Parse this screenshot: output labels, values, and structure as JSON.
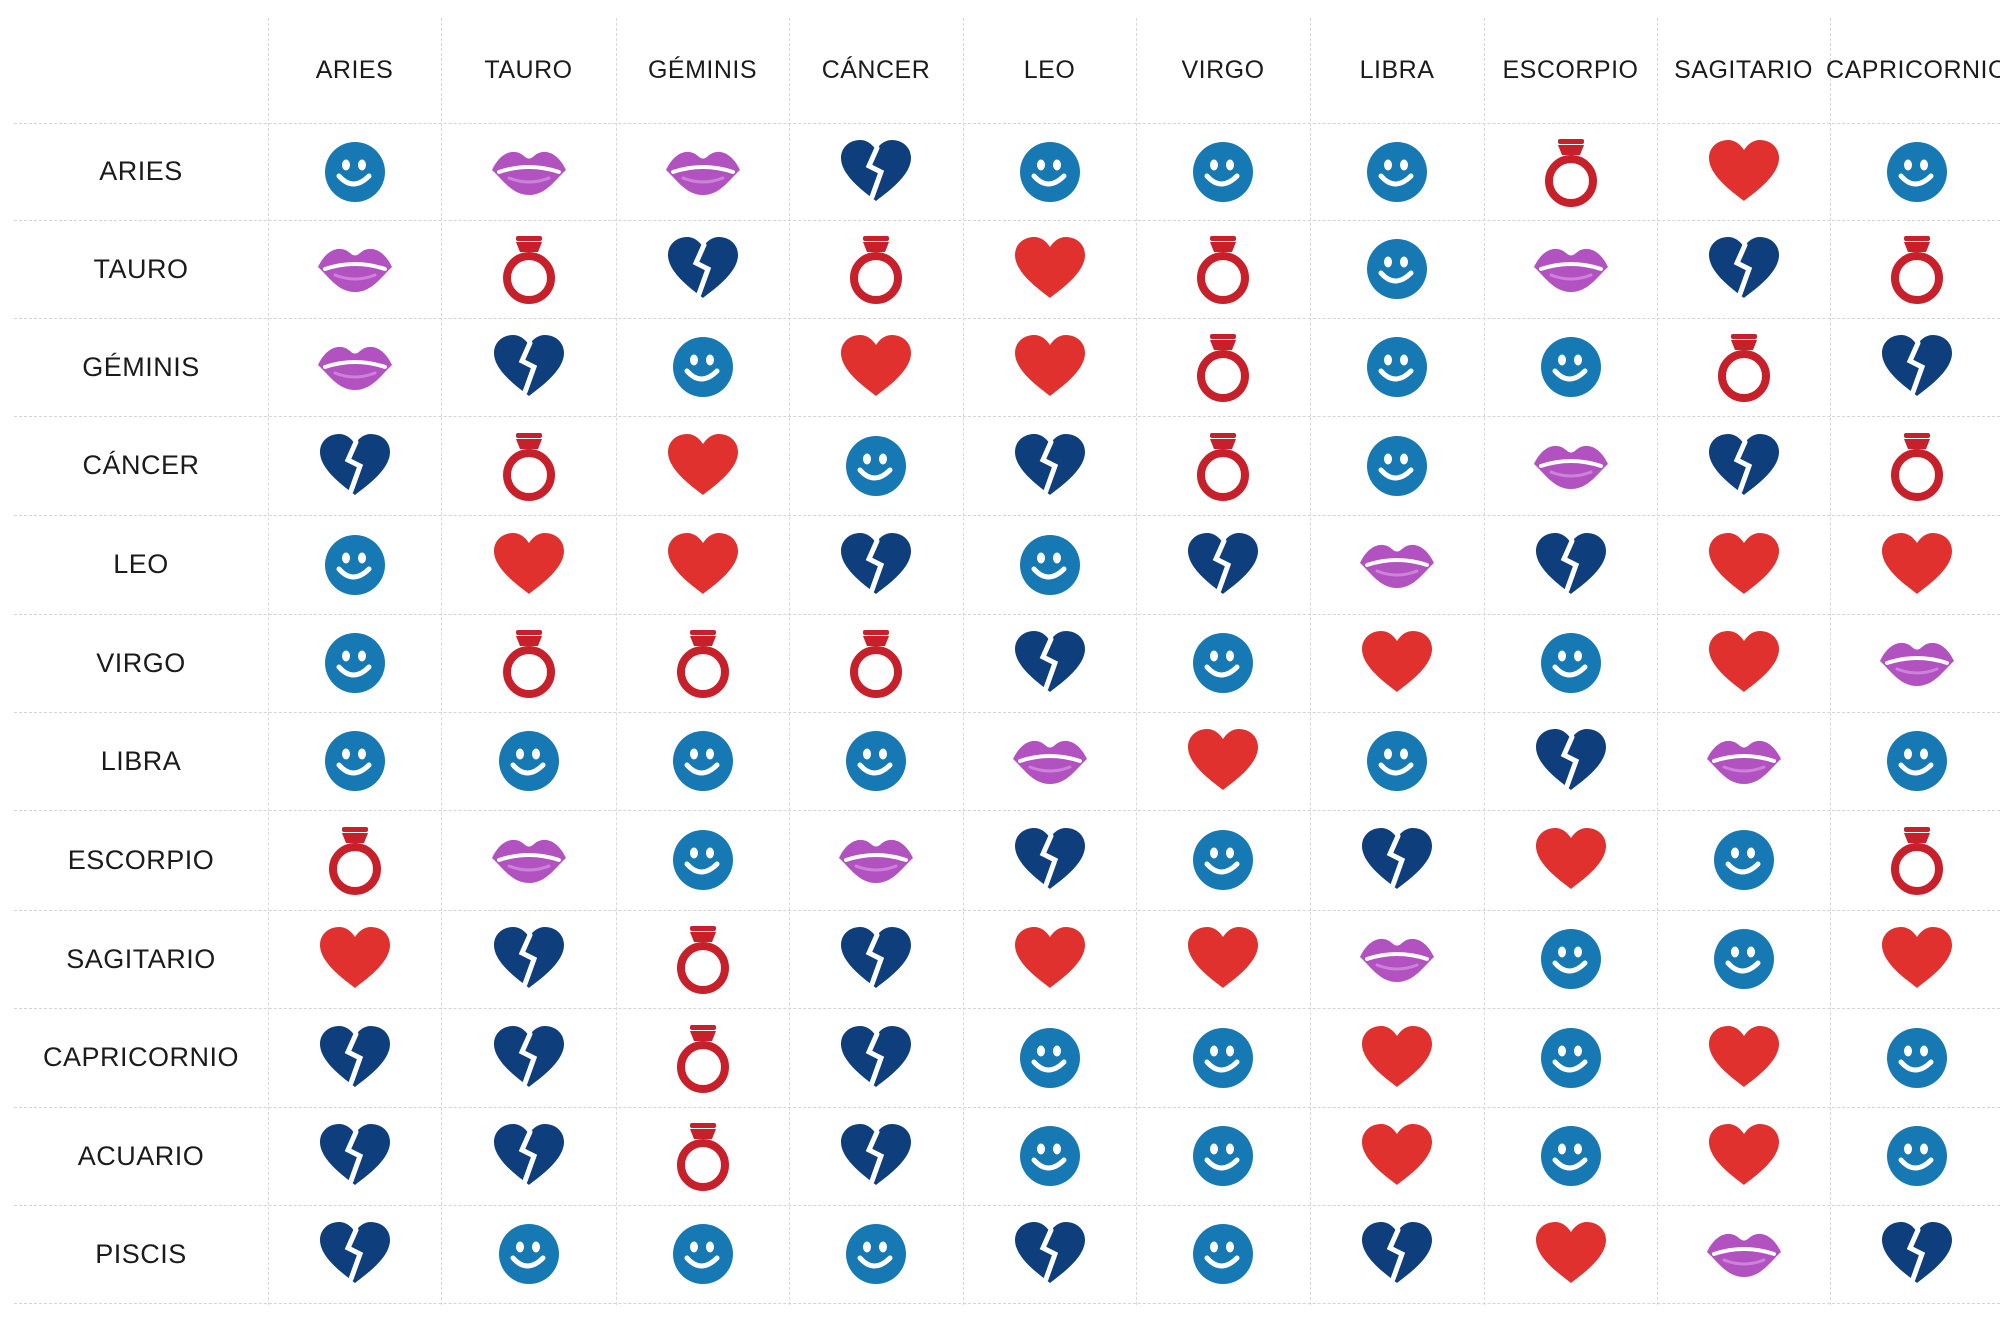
{
  "columns": [
    "ARIES",
    "TAURO",
    "GÉMINIS",
    "CÁNCER",
    "LEO",
    "VIRGO",
    "LIBRA",
    "ESCORPIO",
    "SAGITARIO",
    "CAPRICORNIO"
  ],
  "rows": [
    {
      "label": "ARIES",
      "cells": [
        "smiley",
        "kiss",
        "kiss",
        "broken-heart",
        "smiley",
        "smiley",
        "smiley",
        "ring",
        "heart",
        "smiley"
      ]
    },
    {
      "label": "TAURO",
      "cells": [
        "kiss",
        "ring",
        "broken-heart",
        "ring",
        "heart",
        "ring",
        "smiley",
        "kiss",
        "broken-heart",
        "ring"
      ]
    },
    {
      "label": "GÉMINIS",
      "cells": [
        "kiss",
        "broken-heart",
        "smiley",
        "heart",
        "heart",
        "ring",
        "smiley",
        "smiley",
        "ring",
        "broken-heart"
      ]
    },
    {
      "label": "CÁNCER",
      "cells": [
        "broken-heart",
        "ring",
        "heart",
        "smiley",
        "broken-heart",
        "ring",
        "smiley",
        "kiss",
        "broken-heart",
        "ring"
      ]
    },
    {
      "label": "LEO",
      "cells": [
        "smiley",
        "heart",
        "heart",
        "broken-heart",
        "smiley",
        "broken-heart",
        "kiss",
        "broken-heart",
        "heart",
        "heart"
      ]
    },
    {
      "label": "VIRGO",
      "cells": [
        "smiley",
        "ring",
        "ring",
        "ring",
        "broken-heart",
        "smiley",
        "heart",
        "smiley",
        "heart",
        "kiss"
      ]
    },
    {
      "label": "LIBRA",
      "cells": [
        "smiley",
        "smiley",
        "smiley",
        "smiley",
        "kiss",
        "heart",
        "smiley",
        "broken-heart",
        "kiss",
        "smiley"
      ]
    },
    {
      "label": "ESCORPIO",
      "cells": [
        "ring",
        "kiss",
        "smiley",
        "kiss",
        "broken-heart",
        "smiley",
        "broken-heart",
        "heart",
        "smiley",
        "ring"
      ]
    },
    {
      "label": "SAGITARIO",
      "cells": [
        "heart",
        "broken-heart",
        "ring",
        "broken-heart",
        "heart",
        "heart",
        "kiss",
        "smiley",
        "smiley",
        "heart"
      ]
    },
    {
      "label": "CAPRICORNIO",
      "cells": [
        "broken-heart",
        "broken-heart",
        "ring",
        "broken-heart",
        "smiley",
        "smiley",
        "heart",
        "smiley",
        "heart",
        "smiley"
      ]
    },
    {
      "label": "ACUARIO",
      "cells": [
        "broken-heart",
        "broken-heart",
        "ring",
        "broken-heart",
        "smiley",
        "smiley",
        "heart",
        "smiley",
        "heart",
        "smiley"
      ]
    },
    {
      "label": "PISCIS",
      "cells": [
        "broken-heart",
        "smiley",
        "smiley",
        "smiley",
        "broken-heart",
        "smiley",
        "broken-heart",
        "heart",
        "kiss",
        "broken-heart"
      ]
    }
  ],
  "icon_colors": {
    "smiley": "#1679b4",
    "kiss": "#b152c0",
    "broken-heart": "#0e3f7c",
    "heart": "#e0312e",
    "ring": "#c8202a"
  }
}
